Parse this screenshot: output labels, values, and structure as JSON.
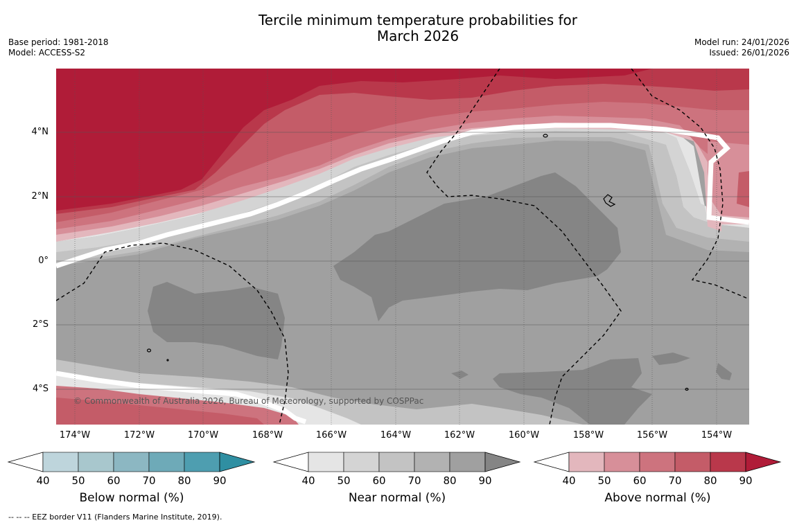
{
  "title_line1": "Tercile minimum temperature probabilities for",
  "title_line2": "March 2026",
  "meta_left": [
    "Base period: 1981-2018",
    "Model: ACCESS-S2"
  ],
  "meta_right": [
    "Model run: 24/01/2026",
    "Issued: 26/01/2026"
  ],
  "lat_labels": [
    "4°N",
    "2°N",
    "0°",
    "2°S",
    "4°S"
  ],
  "lon_labels": [
    "174°W",
    "172°W",
    "170°W",
    "168°W",
    "166°W",
    "164°W",
    "162°W",
    "160°W",
    "158°W",
    "156°W",
    "154°W"
  ],
  "copyright": "© Commonwealth of Australia 2026, Bureau of Meteorology, supported by COSPPac",
  "legend_text": "--  --  -- EEZ border V11 (Flanders Marine Institute, 2019).",
  "colorbars": [
    {
      "title": "Below normal (%)",
      "ticks": [
        "40",
        "50",
        "60",
        "70",
        "80",
        "90"
      ],
      "colors": [
        "#bed5dc",
        "#a8c7cd",
        "#8cb7c2",
        "#6eaab8",
        "#4e9eb0",
        "#2f8fa2"
      ]
    },
    {
      "title": "Near normal (%)",
      "ticks": [
        "40",
        "50",
        "60",
        "70",
        "80",
        "90"
      ],
      "colors": [
        "#e5e5e5",
        "#d4d4d4",
        "#c3c3c3",
        "#b2b2b2",
        "#a0a0a0",
        "#858585"
      ]
    },
    {
      "title": "Above normal (%)",
      "ticks": [
        "40",
        "50",
        "60",
        "70",
        "80",
        "90"
      ],
      "colors": [
        "#e3b7bd",
        "#d78f99",
        "#cd737e",
        "#c45c68",
        "#b9384b",
        "#b01c38"
      ]
    }
  ]
}
